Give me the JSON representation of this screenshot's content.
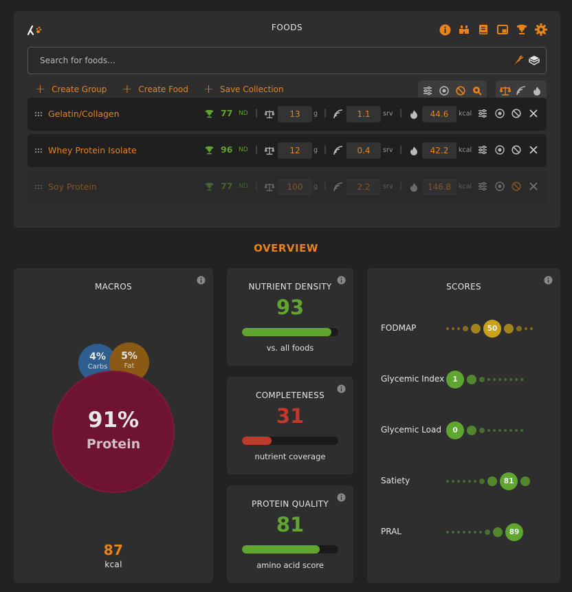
{
  "header": {
    "logo_icon": "lambda-paw-logo",
    "title": "FOODS",
    "icons": [
      "info-icon",
      "binoculars-icon",
      "book-icon",
      "picture-in-picture-icon",
      "trophy-icon",
      "gear-icon"
    ]
  },
  "search": {
    "placeholder": "Search for foods...",
    "value": "",
    "icons": [
      "carrot-icon",
      "cube-icon"
    ]
  },
  "actions": [
    {
      "label": "Create Group",
      "icon": "plus-icon"
    },
    {
      "label": "Create Food",
      "icon": "plus-icon"
    },
    {
      "label": "Save Collection",
      "icon": "plus-icon"
    }
  ],
  "toolbar": {
    "group1": [
      "sliders-icon",
      "target-icon",
      "ban-icon",
      "search-zoom-icon"
    ],
    "group2": [
      "scale-icon",
      "serving-icon",
      "flame-icon"
    ]
  },
  "foods": [
    {
      "name": "Gelatin/Collagen",
      "score": "77",
      "nd": "ND",
      "grams": "13",
      "g_unit": "g",
      "servings": "1.1",
      "srv_unit": "srv",
      "kcal": "44.6",
      "kcal_unit": "kcal",
      "disabled": false
    },
    {
      "name": "Whey Protein Isolate",
      "score": "96",
      "nd": "ND",
      "grams": "12",
      "g_unit": "g",
      "servings": "0.4",
      "srv_unit": "srv",
      "kcal": "42.2",
      "kcal_unit": "kcal",
      "disabled": false
    },
    {
      "name": "Soy Protein",
      "score": "77",
      "nd": "ND",
      "grams": "100",
      "g_unit": "g",
      "servings": "2.2",
      "srv_unit": "srv",
      "kcal": "146.8",
      "kcal_unit": "kcal",
      "disabled": true
    }
  ],
  "overview": {
    "title": "OVERVIEW",
    "macros": {
      "title": "MACROS",
      "carbs_pct": "4%",
      "carbs_label": "Carbs",
      "fat_pct": "5%",
      "fat_label": "Fat",
      "protein_pct": "91%",
      "protein_label": "Protein",
      "kcal": "87",
      "kcal_label": "kcal",
      "colors": {
        "carbs": "#2e5d8f",
        "fat": "#8a5a14",
        "protein": "#6e1331"
      }
    },
    "nutrient_density": {
      "title": "NUTRIENT DENSITY",
      "value": "93",
      "fraction": 0.93,
      "caption": "vs. all foods",
      "color": "#5fa52f"
    },
    "completeness": {
      "title": "COMPLETENESS",
      "value": "31",
      "fraction": 0.31,
      "caption": "nutrient coverage",
      "color": "#c0392b"
    },
    "protein_quality": {
      "title": "PROTEIN QUALITY",
      "value": "81",
      "fraction": 0.81,
      "caption": "amino acid score",
      "color": "#5fa52f"
    },
    "scores": {
      "title": "SCORES",
      "items": [
        {
          "label": "FODMAP",
          "value": "50",
          "position": 5,
          "color": "#c9a11a"
        },
        {
          "label": "Glycemic Index",
          "value": "1",
          "position": 0,
          "color": "#5fa52f"
        },
        {
          "label": "Glycemic Load",
          "value": "0",
          "position": 0,
          "color": "#5fa52f"
        },
        {
          "label": "Satiety",
          "value": "81",
          "position": 8,
          "color": "#5fa52f"
        },
        {
          "label": "PRAL",
          "value": "89",
          "position": 9,
          "color": "#5fa52f"
        }
      ]
    }
  },
  "colors": {
    "accent": "#e8831c",
    "good": "#5fa52f",
    "bad": "#c0392b",
    "panel": "#2e2e2e"
  }
}
